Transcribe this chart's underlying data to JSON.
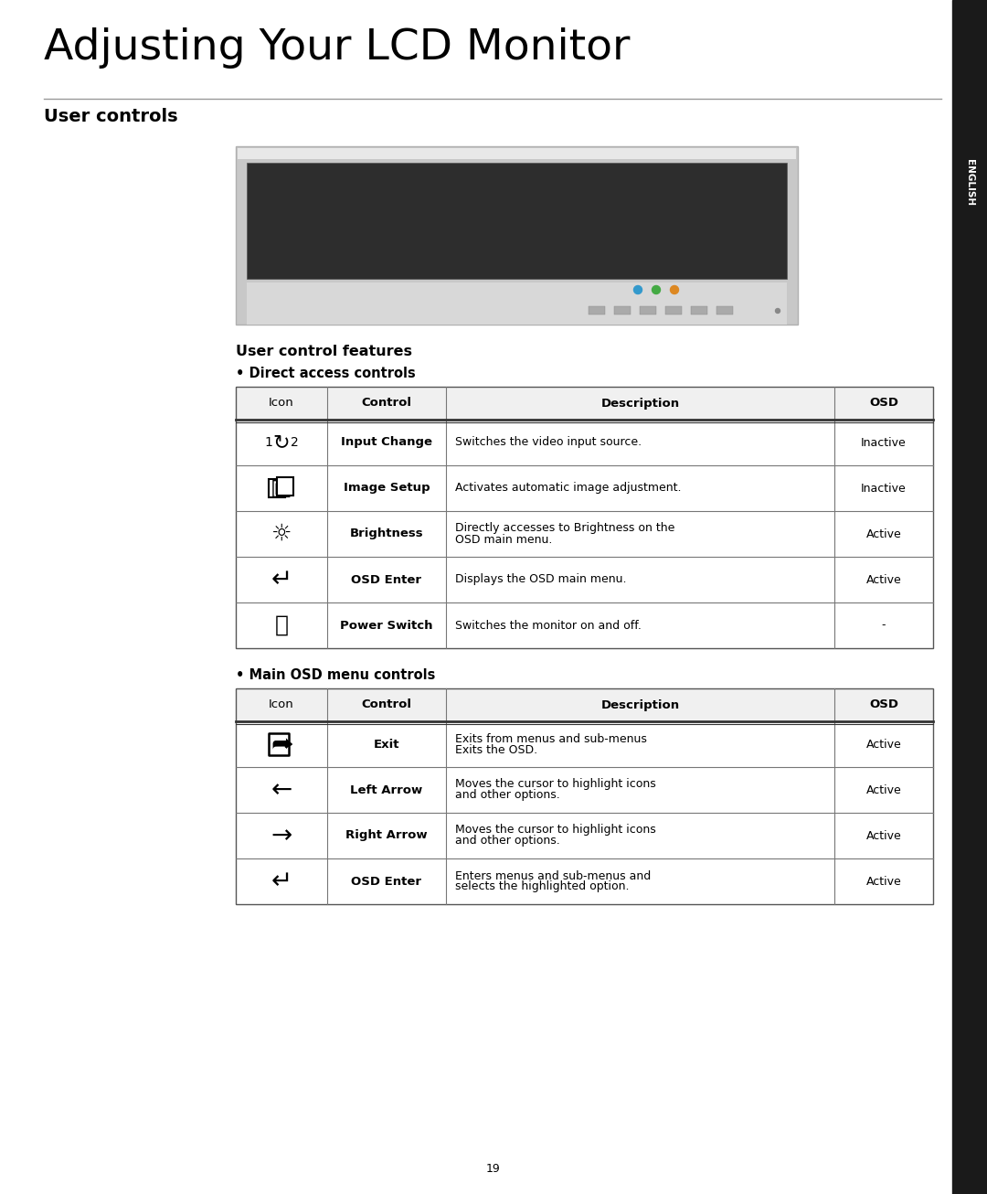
{
  "title": "Adjusting Your LCD Monitor",
  "section_title": "User controls",
  "subsection_title": "User control features",
  "bullet1": "Direct access controls",
  "bullet2": "Main OSD menu controls",
  "page_number": "19",
  "sidebar_text": "ENGLISH",
  "bg_color": "#ffffff",
  "sidebar_color": "#1a1a1a",
  "table_border_color": "#888888",
  "header_double_line_color": "#444444",
  "section_line_color": "#999999",
  "title_color": "#000000",
  "text_color": "#000000",
  "table1_headers": [
    "Icon",
    "Control",
    "Description",
    "OSD"
  ],
  "table1_rows": [
    [
      "INPUT_CHANGE",
      "Input Change",
      "Switches the video input source.",
      "Inactive"
    ],
    [
      "IMAGE_SETUP",
      "Image Setup",
      "Activates automatic image adjustment.",
      "Inactive"
    ],
    [
      "BRIGHTNESS",
      "Brightness",
      "Directly accesses to Brightness on the\nOSD main menu.",
      "Active"
    ],
    [
      "OSD_ENTER",
      "OSD Enter",
      "Displays the OSD main menu.",
      "Active"
    ],
    [
      "POWER",
      "Power Switch",
      "Switches the monitor on and off.",
      "-"
    ]
  ],
  "table2_headers": [
    "Icon",
    "Control",
    "Description",
    "OSD"
  ],
  "table2_rows": [
    [
      "EXIT",
      "Exit",
      "Exits from menus and sub-menus\nExits the OSD.",
      "Active"
    ],
    [
      "LEFT_ARROW",
      "Left Arrow",
      "Moves the cursor to highlight icons\nand other options.",
      "Active"
    ],
    [
      "RIGHT_ARROW",
      "Right Arrow",
      "Moves the cursor to highlight icons\nand other options.",
      "Active"
    ],
    [
      "OSD_ENTER",
      "OSD Enter",
      "Enters menus and sub-menus and\nselects the highlighted option.",
      "Active"
    ]
  ],
  "monitor_colors": {
    "outer_border": "#b0b0b0",
    "outer_fill": "#c8c8c8",
    "screen": "#2d2d2d",
    "bezel_bottom": "#d8d8d8",
    "bezel_dark": "#a0a0a0",
    "btn_blue": "#3399cc",
    "btn_green": "#44aa44",
    "btn_orange": "#dd8822",
    "btn_gray": "#888888"
  }
}
